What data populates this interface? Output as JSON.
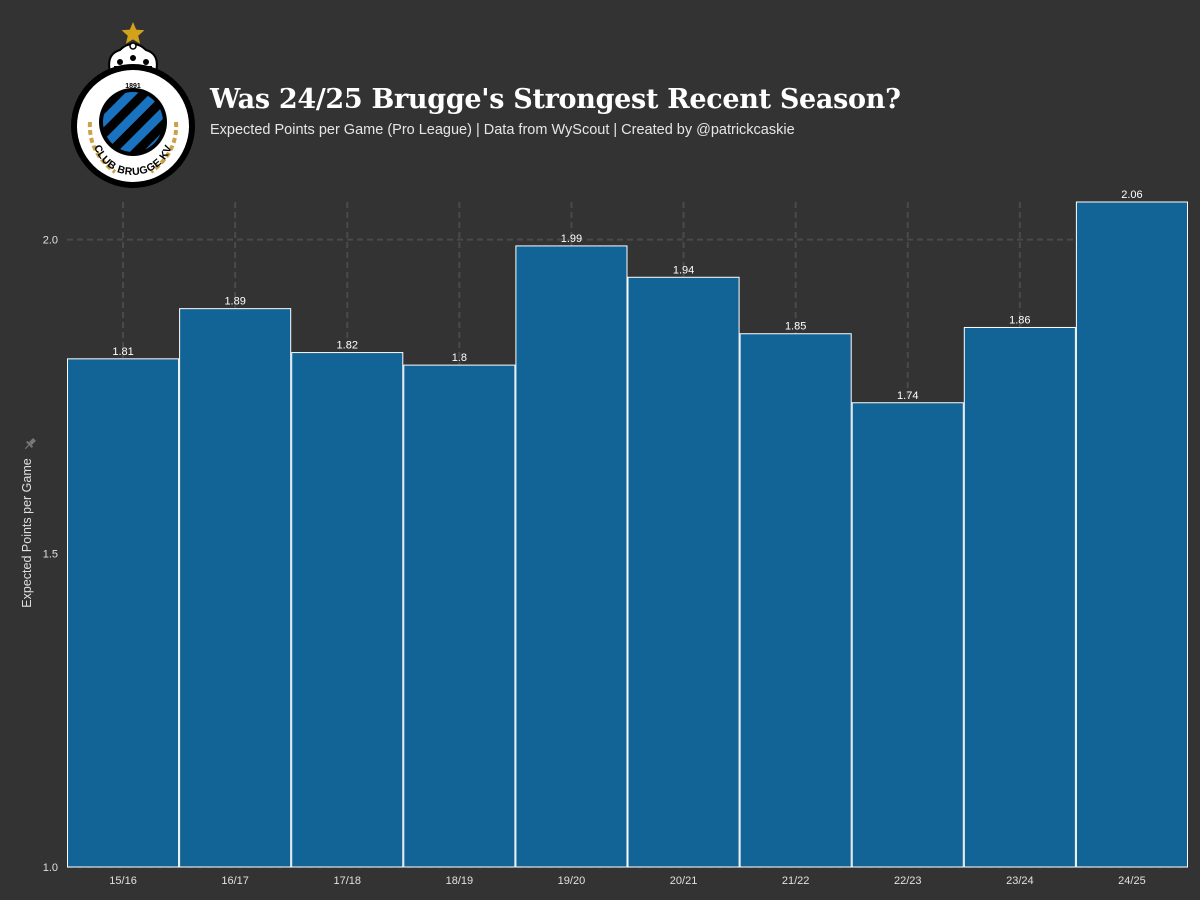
{
  "header": {
    "title": "Was 24/25 Brugge's Strongest Recent Season?",
    "subtitle": "Expected Points per Game (Pro League) | Data from WyScout | Created by @patrickcaskie"
  },
  "logo": {
    "text": "CLUB BRUGGE KV",
    "year": "1891",
    "icon": "club-brugge-crest"
  },
  "colors": {
    "background": "#333333",
    "bar": "#136496",
    "bar_edge": "#ffffff",
    "grid": "#4a4a4a",
    "gold": "#d4a21a"
  },
  "chart_data": {
    "type": "bar",
    "title": "Was 24/25 Brugge's Strongest Recent Season?",
    "xlabel": "",
    "ylabel": "Expected Points per Game",
    "categories": [
      "15/16",
      "16/17",
      "17/18",
      "18/19",
      "19/20",
      "20/21",
      "21/22",
      "22/23",
      "23/24",
      "24/25"
    ],
    "values": [
      1.81,
      1.89,
      1.82,
      1.8,
      1.99,
      1.94,
      1.85,
      1.74,
      1.86,
      2.06
    ],
    "value_labels": [
      "1.81",
      "1.89",
      "1.82",
      "1.8",
      "1.99",
      "1.94",
      "1.85",
      "1.74",
      "1.86",
      "2.06"
    ],
    "yticks": [
      1.0,
      1.5,
      2.0
    ],
    "ytick_labels": [
      "1.0",
      "1.5",
      "2.0"
    ],
    "ylim": [
      1.0,
      2.06
    ],
    "grid": true
  }
}
